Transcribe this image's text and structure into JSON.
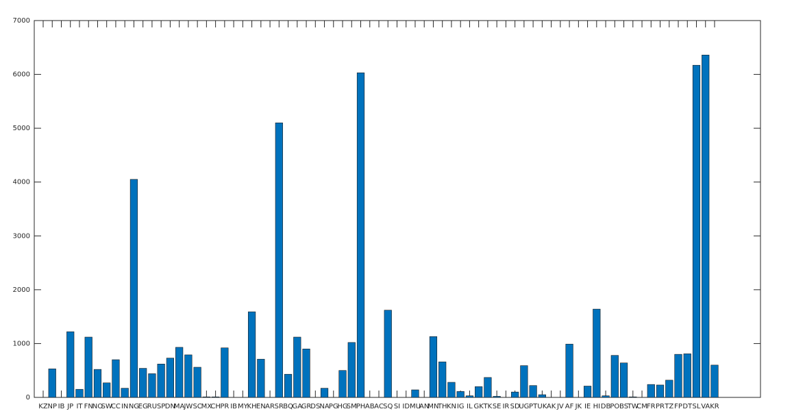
{
  "chart_data": {
    "type": "bar",
    "color": "#0072bd",
    "categories": [
      "KZ",
      "NP",
      "IB",
      "JP",
      "IT",
      "FN",
      "NO",
      "SW",
      "CC",
      "IN",
      "NG",
      "EG",
      "RU",
      "SP",
      "DN",
      "MA",
      "JW",
      "SC",
      "MX",
      "CH",
      "PR",
      "IB",
      "MY",
      "KH",
      "EN",
      "AR",
      "SR",
      "BQ",
      "GA",
      "GR",
      "DS",
      "NA",
      "PG",
      "HG",
      "SM",
      "PH",
      "AB",
      "AC",
      "SQ",
      "SI",
      "ID",
      "MU",
      "AN",
      "MN",
      "TH",
      "KN",
      "IG",
      "IL",
      "GK",
      "TK",
      "SE",
      "IR",
      "SD",
      "UG",
      "PT",
      "UK",
      "AK",
      "JV",
      "AF",
      "JK",
      "IE",
      "HI",
      "DB",
      "PO",
      "BS",
      "TW",
      "CM",
      "FR",
      "PR",
      "TZ",
      "FP",
      "DT",
      "SL",
      "VA",
      "KR"
    ],
    "values": [
      0,
      530,
      0,
      1220,
      150,
      1120,
      520,
      270,
      700,
      170,
      4050,
      540,
      440,
      620,
      730,
      930,
      790,
      560,
      10,
      10,
      920,
      0,
      0,
      1590,
      710,
      0,
      5100,
      430,
      1120,
      900,
      0,
      170,
      0,
      500,
      1020,
      6030,
      0,
      0,
      1620,
      0,
      0,
      140,
      0,
      1130,
      660,
      280,
      110,
      30,
      200,
      370,
      20,
      0,
      100,
      590,
      220,
      50,
      0,
      0,
      990,
      0,
      210,
      1640,
      30,
      780,
      640,
      10,
      0,
      240,
      230,
      320,
      800,
      810,
      6170,
      6360,
      600
    ],
    "ylim": [
      0,
      7000
    ],
    "yticks": [
      0,
      1000,
      2000,
      3000,
      4000,
      5000,
      6000,
      7000
    ]
  }
}
